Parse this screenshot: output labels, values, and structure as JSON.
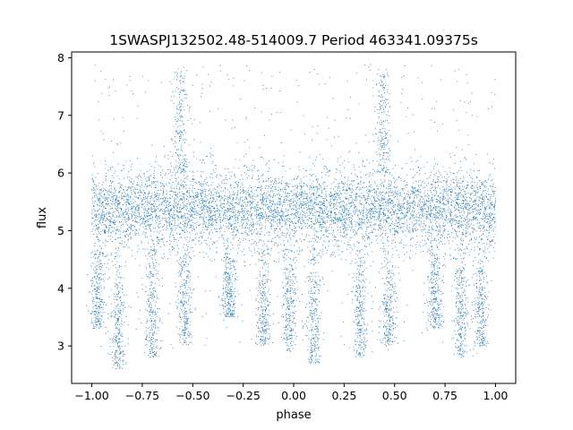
{
  "chart_data": {
    "type": "scatter",
    "title": "1SWASPJ132502.48-514009.7 Period 463341.09375s",
    "xlabel": "phase",
    "ylabel": "flux",
    "xlim": [
      -1.1,
      1.1
    ],
    "ylim": [
      2.35,
      8.1
    ],
    "x_ticks": [
      -1.0,
      -0.75,
      -0.5,
      -0.25,
      0.0,
      0.25,
      0.5,
      0.75,
      1.0
    ],
    "x_tick_labels": [
      "−1.00",
      "−0.75",
      "−0.50",
      "−0.25",
      "0.00",
      "0.25",
      "0.50",
      "0.75",
      "1.00"
    ],
    "y_ticks": [
      3,
      4,
      5,
      6,
      7,
      8
    ],
    "y_tick_labels": [
      "3",
      "4",
      "5",
      "6",
      "7",
      "8"
    ],
    "grid": false,
    "legend": "none",
    "point_color": "#1f77b4",
    "series": [
      {
        "baseline_band": {
          "x_range": [
            -1.0,
            1.0
          ],
          "y_range": [
            4.75,
            6.0
          ]
        },
        "dips": [
          {
            "x": -0.97,
            "min_y": 3.3
          },
          {
            "x": -0.87,
            "min_y": 2.6
          },
          {
            "x": -0.7,
            "min_y": 2.8
          },
          {
            "x": -0.54,
            "min_y": 3.0
          },
          {
            "x": -0.32,
            "min_y": 3.5
          },
          {
            "x": -0.15,
            "min_y": 3.0
          },
          {
            "x": -0.02,
            "min_y": 2.9
          },
          {
            "x": 0.1,
            "min_y": 2.7
          },
          {
            "x": 0.33,
            "min_y": 2.8
          },
          {
            "x": 0.47,
            "min_y": 3.0
          },
          {
            "x": 0.7,
            "min_y": 3.3
          },
          {
            "x": 0.83,
            "min_y": 2.8
          },
          {
            "x": 0.93,
            "min_y": 3.0
          }
        ],
        "flares": [
          {
            "x": -0.56,
            "max_y": 7.8
          },
          {
            "x": 0.44,
            "max_y": 7.8
          }
        ]
      }
    ]
  }
}
